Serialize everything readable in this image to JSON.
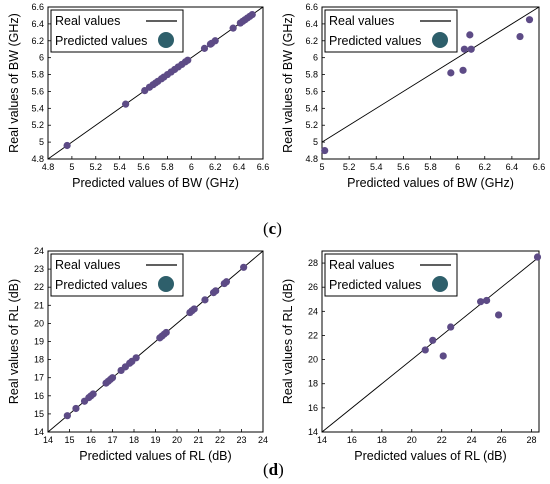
{
  "panel_labels": {
    "c": "c",
    "d": "d"
  },
  "chart_data": [
    {
      "type": "scatter",
      "xlabel": "Predicted values of  BW (GHz)",
      "ylabel": "Real values of  BW (GHz)",
      "xlim": [
        4.8,
        6.6
      ],
      "ylim": [
        4.8,
        6.6
      ],
      "xticks": [
        4.8,
        5,
        5.2,
        5.4,
        5.6,
        5.8,
        6,
        6.2,
        6.4,
        6.6
      ],
      "yticks": [
        4.8,
        5,
        5.2,
        5.4,
        5.6,
        5.8,
        6,
        6.2,
        6.4,
        6.6
      ],
      "xtick_labels": [
        "4.8",
        "5",
        "5.2",
        "5.4",
        "5.6",
        "5.8",
        "6",
        "6.2",
        "6.4",
        "6.6"
      ],
      "ytick_labels": [
        "4.8",
        "5",
        "5.2",
        "5.4",
        "5.6",
        "5.8",
        "6",
        "6.2",
        "6.4",
        "6.6"
      ],
      "legend": {
        "position": "top-left",
        "line_label": "Real values",
        "marker_label": "Predicted values"
      },
      "reference_line": "y = x",
      "point_color": "#5d4b86",
      "legend_marker_color": "#2e5f6b",
      "x": [
        4.96,
        5.45,
        5.61,
        5.65,
        5.68,
        5.7,
        5.72,
        5.75,
        5.77,
        5.8,
        5.83,
        5.86,
        5.89,
        5.92,
        5.95,
        5.97,
        6.11,
        6.16,
        6.17,
        6.2,
        6.35,
        6.41,
        6.43,
        6.45,
        6.47,
        6.49,
        6.51
      ],
      "y": [
        4.96,
        5.45,
        5.61,
        5.65,
        5.68,
        5.7,
        5.72,
        5.75,
        5.77,
        5.8,
        5.83,
        5.86,
        5.89,
        5.92,
        5.95,
        5.97,
        6.11,
        6.16,
        6.17,
        6.2,
        6.35,
        6.41,
        6.43,
        6.45,
        6.47,
        6.49,
        6.51
      ]
    },
    {
      "type": "scatter",
      "xlabel": "Predicted values of  BW (GHz)",
      "ylabel": "Real values of  BW (GHz)",
      "xlim": [
        5,
        6.6
      ],
      "ylim": [
        4.8,
        6.6
      ],
      "xticks": [
        5,
        5.2,
        5.4,
        5.6,
        5.8,
        6,
        6.2,
        6.4,
        6.6
      ],
      "yticks": [
        4.8,
        5,
        5.2,
        5.4,
        5.6,
        5.8,
        6,
        6.2,
        6.4,
        6.6
      ],
      "xtick_labels": [
        "5",
        "5.2",
        "5.4",
        "5.6",
        "5.8",
        "6",
        "6.2",
        "6.4",
        "6.6"
      ],
      "ytick_labels": [
        "4.8",
        "5",
        "5.2",
        "5.4",
        "5.6",
        "5.8",
        "6",
        "6.2",
        "6.4",
        "6.6"
      ],
      "legend": {
        "position": "top-left",
        "line_label": "Real values",
        "marker_label": "Predicted values"
      },
      "reference_line": "y = x",
      "point_color": "#5d4b86",
      "legend_marker_color": "#2e5f6b",
      "x": [
        5.02,
        5.95,
        6.04,
        6.05,
        6.09,
        6.1,
        6.46,
        6.53
      ],
      "y": [
        4.9,
        5.82,
        5.85,
        6.1,
        6.27,
        6.1,
        6.25,
        6.45
      ]
    },
    {
      "type": "scatter",
      "xlabel": "Predicted values of  RL (dB)",
      "ylabel": "Real values of  RL (dB)",
      "xlim": [
        14,
        24
      ],
      "ylim": [
        14,
        24
      ],
      "xticks": [
        14,
        15,
        16,
        17,
        18,
        19,
        20,
        21,
        22,
        23,
        24
      ],
      "yticks": [
        14,
        15,
        16,
        17,
        18,
        19,
        20,
        21,
        22,
        23,
        24
      ],
      "xtick_labels": [
        "14",
        "15",
        "16",
        "17",
        "18",
        "19",
        "20",
        "21",
        "22",
        "23",
        "24"
      ],
      "ytick_labels": [
        "14",
        "15",
        "16",
        "17",
        "18",
        "19",
        "20",
        "21",
        "22",
        "23",
        "24"
      ],
      "legend": {
        "position": "top-left",
        "line_label": "Real values",
        "marker_label": "Predicted values"
      },
      "reference_line": "y = x",
      "point_color": "#5d4b86",
      "legend_marker_color": "#2e5f6b",
      "x": [
        14.9,
        15.3,
        15.7,
        15.9,
        16.0,
        16.1,
        16.7,
        16.8,
        16.9,
        17.0,
        17.4,
        17.6,
        17.8,
        17.9,
        18.1,
        19.2,
        19.3,
        19.4,
        19.5,
        20.6,
        20.7,
        20.8,
        21.3,
        21.7,
        21.8,
        22.2,
        22.3,
        23.1
      ],
      "y": [
        14.9,
        15.3,
        15.7,
        15.9,
        16.0,
        16.1,
        16.7,
        16.8,
        16.9,
        17.0,
        17.4,
        17.6,
        17.8,
        17.9,
        18.1,
        19.2,
        19.3,
        19.4,
        19.5,
        20.6,
        20.7,
        20.8,
        21.3,
        21.7,
        21.8,
        22.2,
        22.3,
        23.1
      ]
    },
    {
      "type": "scatter",
      "xlabel": "Predicted values of  RL (dB)",
      "ylabel": "Real values of  RL (dB)",
      "xlim": [
        14,
        28.5
      ],
      "ylim": [
        14,
        29
      ],
      "xticks": [
        14,
        16,
        18,
        20,
        22,
        24,
        26,
        28
      ],
      "yticks": [
        14,
        16,
        18,
        20,
        22,
        24,
        26,
        28
      ],
      "xtick_labels": [
        "14",
        "16",
        "18",
        "20",
        "22",
        "24",
        "26",
        "28"
      ],
      "ytick_labels": [
        "14",
        "16",
        "18",
        "20",
        "22",
        "24",
        "26",
        "28"
      ],
      "legend": {
        "position": "top-left",
        "line_label": "Real values",
        "marker_label": "Predicted values"
      },
      "reference_line": "y = x",
      "point_color": "#5d4b86",
      "legend_marker_color": "#2e5f6b",
      "x": [
        20.9,
        21.4,
        22.1,
        22.6,
        24.6,
        25.0,
        25.8,
        28.4
      ],
      "y": [
        20.8,
        21.6,
        20.3,
        22.7,
        24.8,
        24.9,
        23.7,
        28.5
      ]
    }
  ]
}
